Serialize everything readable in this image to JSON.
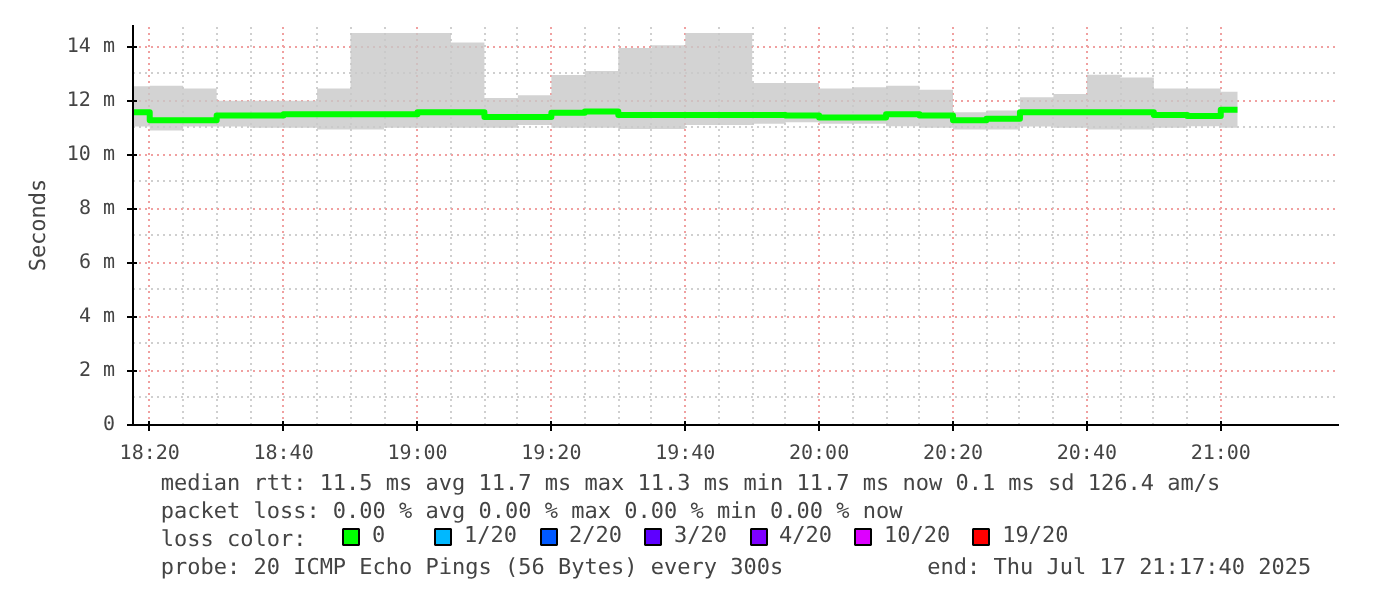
{
  "chart_data": {
    "type": "step",
    "ylabel": "Seconds",
    "legend_title": "loss color:",
    "legend": "bottom",
    "grid": true,
    "x": [
      18.2917,
      18.375,
      18.4583,
      18.5417,
      18.625,
      18.7083,
      18.7917,
      18.875,
      18.9583,
      19.0417,
      19.125,
      19.2083,
      19.2917,
      19.375,
      19.4583,
      19.5417,
      19.625,
      19.7083,
      19.7917,
      19.875,
      19.9583,
      20.0417,
      20.125,
      20.2083,
      20.2917,
      20.375,
      20.4583,
      20.5417,
      20.625,
      20.7083,
      20.7917,
      20.875,
      20.9583,
      21.0417
    ],
    "xlim": [
      18.2917,
      21.2944
    ],
    "xticks": [
      {
        "value": 18.3333,
        "label": "18:20"
      },
      {
        "value": 18.6667,
        "label": "18:40"
      },
      {
        "value": 19.0,
        "label": "19:00"
      },
      {
        "value": 19.3333,
        "label": "19:20"
      },
      {
        "value": 19.6667,
        "label": "19:40"
      },
      {
        "value": 20.0,
        "label": "20:00"
      },
      {
        "value": 20.3333,
        "label": "20:20"
      },
      {
        "value": 20.6667,
        "label": "20:40"
      },
      {
        "value": 21.0,
        "label": "21:00"
      }
    ],
    "ylim": [
      0,
      14.8
    ],
    "yticks": [
      0,
      {
        "value": 2,
        "label": "2 m"
      },
      {
        "value": 4,
        "label": "4 m"
      },
      {
        "value": 6,
        "label": "6 m"
      },
      {
        "value": 8,
        "label": "8 m"
      },
      {
        "value": 10,
        "label": "10 m"
      },
      {
        "value": 12,
        "label": "12 m"
      },
      {
        "value": 14,
        "label": "14 m"
      }
    ],
    "series": [
      {
        "color": "#00ff00",
        "values": [
          11.57,
          11.28,
          11.28,
          11.45,
          11.45,
          11.5,
          11.5,
          11.5,
          11.5,
          11.57,
          11.57,
          11.4,
          11.4,
          11.55,
          11.6,
          11.47,
          11.47,
          11.47,
          11.47,
          11.47,
          11.45,
          11.38,
          11.38,
          11.5,
          11.45,
          11.28,
          11.33,
          11.57,
          11.57,
          11.57,
          11.57,
          11.47,
          11.43,
          11.66
        ],
        "lower": [
          11.04,
          10.9,
          11.04,
          11.04,
          11.0,
          11.0,
          10.93,
          10.93,
          11.0,
          11.0,
          11.0,
          11.0,
          11.1,
          11.0,
          11.0,
          10.95,
          10.95,
          11.1,
          11.1,
          11.15,
          11.2,
          11.15,
          11.15,
          11.05,
          11.0,
          10.93,
          10.93,
          11.04,
          11.0,
          10.93,
          10.93,
          11.0,
          11.05,
          11.0
        ],
        "upper": [
          12.53,
          12.55,
          12.45,
          12.0,
          12.0,
          12.0,
          12.45,
          14.5,
          14.5,
          14.5,
          14.15,
          12.1,
          12.2,
          12.95,
          13.1,
          13.95,
          14.05,
          14.5,
          14.5,
          12.65,
          12.65,
          12.45,
          12.5,
          12.55,
          12.4,
          11.57,
          11.64,
          12.13,
          12.25,
          12.96,
          12.86,
          12.45,
          12.45,
          12.33
        ]
      },
      {
        "name": "0",
        "color": "#00ff00",
        "values": [
          null,
          null,
          null,
          null,
          null,
          null,
          null,
          null,
          null,
          null,
          null,
          null,
          null,
          null,
          null,
          null,
          null,
          null,
          null,
          null,
          null,
          null,
          null,
          null,
          null,
          null,
          null,
          null,
          null,
          null,
          null,
          null,
          null,
          null
        ]
      },
      {
        "name": "1/20",
        "color": "#00b8ff",
        "values": [
          null,
          null,
          null,
          null,
          null,
          null,
          null,
          null,
          null,
          null,
          null,
          null,
          null,
          null,
          null,
          null,
          null,
          null,
          null,
          null,
          null,
          null,
          null,
          null,
          null,
          null,
          null,
          null,
          null,
          null,
          null,
          null,
          null,
          null
        ]
      },
      {
        "name": "2/20",
        "color": "#0059ff",
        "values": [
          null,
          null,
          null,
          null,
          null,
          null,
          null,
          null,
          null,
          null,
          null,
          null,
          null,
          null,
          null,
          null,
          null,
          null,
          null,
          null,
          null,
          null,
          null,
          null,
          null,
          null,
          null,
          null,
          null,
          null,
          null,
          null,
          null,
          null
        ]
      },
      {
        "name": "3/20",
        "color": "#5e00ff",
        "values": [
          null,
          null,
          null,
          null,
          null,
          null,
          null,
          null,
          null,
          null,
          null,
          null,
          null,
          null,
          null,
          null,
          null,
          null,
          null,
          null,
          null,
          null,
          null,
          null,
          null,
          null,
          null,
          null,
          null,
          null,
          null,
          null,
          null,
          null
        ]
      },
      {
        "name": "4/20",
        "color": "#7e00ff",
        "values": [
          null,
          null,
          null,
          null,
          null,
          null,
          null,
          null,
          null,
          null,
          null,
          null,
          null,
          null,
          null,
          null,
          null,
          null,
          null,
          null,
          null,
          null,
          null,
          null,
          null,
          null,
          null,
          null,
          null,
          null,
          null,
          null,
          null,
          null
        ]
      },
      {
        "name": "10/20",
        "color": "#dd00ff",
        "values": [
          null,
          null,
          null,
          null,
          null,
          null,
          null,
          null,
          null,
          null,
          null,
          null,
          null,
          null,
          null,
          null,
          null,
          null,
          null,
          null,
          null,
          null,
          null,
          null,
          null,
          null,
          null,
          null,
          null,
          null,
          null,
          null,
          null,
          null
        ]
      },
      {
        "name": "19/20",
        "color": "#ff0000",
        "values": [
          null,
          null,
          null,
          null,
          null,
          null,
          null,
          null,
          null,
          null,
          null,
          null,
          null,
          null,
          null,
          null,
          null,
          null,
          null,
          null,
          null,
          null,
          null,
          null,
          null,
          null,
          null,
          null,
          null,
          null,
          null,
          null,
          null,
          null
        ]
      }
    ],
    "annotations": [
      "median rtt:  11.5 ms avg  11.7 ms max  11.3 ms min  11.7 ms now  0.1 ms sd  126.4   am/s",
      "packet loss: 0.00 % avg  0.00 % max  0.00 % min  0.00 % now",
      "probe:       20 ICMP Echo Pings (56 Bytes) every 300s",
      "end: Thu Jul 17 21:17:40 2025"
    ]
  }
}
